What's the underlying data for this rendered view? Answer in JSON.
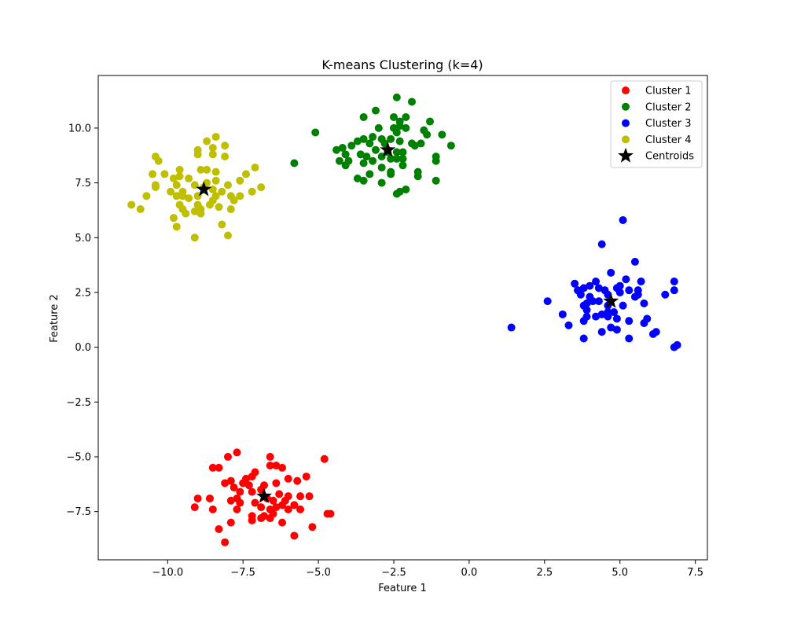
{
  "chart_data": {
    "type": "scatter",
    "title": "K-means Clustering (k=4)",
    "xlabel": "Feature 1",
    "ylabel": "Feature 2",
    "xlim": [
      -12.3,
      7.9
    ],
    "ylim": [
      -9.7,
      12.4
    ],
    "xticks": [
      -10.0,
      -7.5,
      -5.0,
      -2.5,
      0.0,
      2.5,
      5.0,
      7.5
    ],
    "xtick_labels": [
      "−10.0",
      "−7.5",
      "−5.0",
      "−2.5",
      "0.0",
      "2.5",
      "5.0",
      "7.5"
    ],
    "yticks": [
      -7.5,
      -5.0,
      -2.5,
      0.0,
      2.5,
      5.0,
      7.5,
      10.0
    ],
    "ytick_labels": [
      "−7.5",
      "−5.0",
      "−2.5",
      "0.0",
      "2.5",
      "5.0",
      "7.5",
      "10.0"
    ],
    "legend_position": "top-right",
    "series": [
      {
        "name": "Cluster 1",
        "color": "#ff0000",
        "points": [
          [
            -7.7,
            -4.8
          ],
          [
            -6.6,
            -5.0
          ],
          [
            -8.0,
            -5.0
          ],
          [
            -4.8,
            -5.1
          ],
          [
            -8.5,
            -5.5
          ],
          [
            -6.4,
            -5.4
          ],
          [
            -6.2,
            -5.5
          ],
          [
            -6.6,
            -5.4
          ],
          [
            -8.3,
            -5.5
          ],
          [
            -5.4,
            -5.9
          ],
          [
            -7.1,
            -5.7
          ],
          [
            -7.2,
            -5.9
          ],
          [
            -6.0,
            -6.0
          ],
          [
            -5.7,
            -6.1
          ],
          [
            -7.4,
            -6.0
          ],
          [
            -7.9,
            -6.1
          ],
          [
            -8.1,
            -6.2
          ],
          [
            -7.5,
            -6.2
          ],
          [
            -7.3,
            -6.3
          ],
          [
            -6.8,
            -6.3
          ],
          [
            -6.4,
            -6.2
          ],
          [
            -7.8,
            -6.4
          ],
          [
            -6.9,
            -6.5
          ],
          [
            -7.2,
            -6.6
          ],
          [
            -7.6,
            -6.6
          ],
          [
            -6.3,
            -6.7
          ],
          [
            -6.0,
            -6.8
          ],
          [
            -5.6,
            -6.8
          ],
          [
            -5.3,
            -6.8
          ],
          [
            -7.7,
            -6.9
          ],
          [
            -6.7,
            -6.9
          ],
          [
            -8.6,
            -6.9
          ],
          [
            -9.0,
            -6.9
          ],
          [
            -7.9,
            -7.0
          ],
          [
            -6.5,
            -7.0
          ],
          [
            -6.1,
            -7.0
          ],
          [
            -7.6,
            -7.1
          ],
          [
            -7.1,
            -7.1
          ],
          [
            -6.2,
            -7.2
          ],
          [
            -5.8,
            -7.2
          ],
          [
            -6.9,
            -7.3
          ],
          [
            -6.6,
            -7.4
          ],
          [
            -6.4,
            -7.3
          ],
          [
            -6.0,
            -7.4
          ],
          [
            -5.6,
            -7.4
          ],
          [
            -9.1,
            -7.3
          ],
          [
            -8.5,
            -7.4
          ],
          [
            -7.7,
            -7.4
          ],
          [
            -6.5,
            -7.6
          ],
          [
            -6.8,
            -7.7
          ],
          [
            -7.2,
            -7.7
          ],
          [
            -4.7,
            -7.6
          ],
          [
            -4.6,
            -7.6
          ],
          [
            -7.2,
            -7.9
          ],
          [
            -6.6,
            -7.8
          ],
          [
            -6.9,
            -7.8
          ],
          [
            -6.2,
            -8.0
          ],
          [
            -7.9,
            -8.0
          ],
          [
            -5.2,
            -8.2
          ],
          [
            -8.3,
            -8.3
          ],
          [
            -5.8,
            -8.6
          ],
          [
            -8.1,
            -8.9
          ]
        ]
      },
      {
        "name": "Cluster 2",
        "color": "#008000",
        "points": [
          [
            -2.4,
            11.4
          ],
          [
            -1.9,
            11.2
          ],
          [
            -3.1,
            10.8
          ],
          [
            -2.1,
            10.5
          ],
          [
            -2.5,
            10.5
          ],
          [
            -3.5,
            10.5
          ],
          [
            -2.3,
            10.3
          ],
          [
            -1.3,
            10.3
          ],
          [
            -2.3,
            10.1
          ],
          [
            -3.0,
            10.0
          ],
          [
            -2.5,
            10.0
          ],
          [
            -2.1,
            10.0
          ],
          [
            -1.5,
            9.9
          ],
          [
            -2.4,
            9.8
          ],
          [
            -1.4,
            9.7
          ],
          [
            -0.9,
            9.7
          ],
          [
            -5.1,
            9.8
          ],
          [
            -2.6,
            9.5
          ],
          [
            -3.2,
            9.6
          ],
          [
            -2.9,
            9.5
          ],
          [
            -3.7,
            9.4
          ],
          [
            -3.5,
            9.5
          ],
          [
            -3.3,
            9.3
          ],
          [
            -2.8,
            9.3
          ],
          [
            -2.3,
            9.4
          ],
          [
            -1.9,
            9.3
          ],
          [
            -1.6,
            9.3
          ],
          [
            -1.8,
            9.2
          ],
          [
            -0.6,
            9.2
          ],
          [
            -3.9,
            9.2
          ],
          [
            -4.2,
            9.1
          ],
          [
            -4.4,
            9.0
          ],
          [
            -3.1,
            9.0
          ],
          [
            -2.7,
            8.9
          ],
          [
            -2.4,
            8.9
          ],
          [
            -2.2,
            8.9
          ],
          [
            -4.1,
            8.8
          ],
          [
            -3.6,
            8.8
          ],
          [
            -3.4,
            8.7
          ],
          [
            -2.9,
            8.7
          ],
          [
            -2.6,
            8.6
          ],
          [
            -2.4,
            8.6
          ],
          [
            -2.2,
            8.6
          ],
          [
            -3.2,
            8.5
          ],
          [
            -4.0,
            8.5
          ],
          [
            -4.3,
            8.5
          ],
          [
            -3.5,
            8.4
          ],
          [
            -1.1,
            8.7
          ],
          [
            -1.1,
            8.5
          ],
          [
            -5.8,
            8.4
          ],
          [
            -4.1,
            8.3
          ],
          [
            -2.9,
            8.2
          ],
          [
            -2.2,
            8.3
          ],
          [
            -2.6,
            8.0
          ],
          [
            -1.7,
            8.0
          ],
          [
            -3.3,
            7.9
          ],
          [
            -2.6,
            7.9
          ],
          [
            -1.7,
            7.8
          ],
          [
            -3.7,
            7.7
          ],
          [
            -3.5,
            7.6
          ],
          [
            -2.9,
            7.5
          ],
          [
            -1.1,
            7.6
          ],
          [
            -2.1,
            7.2
          ],
          [
            -2.3,
            7.1
          ],
          [
            -2.4,
            7.0
          ]
        ]
      },
      {
        "name": "Cluster 3",
        "color": "#0000ff",
        "points": [
          [
            5.1,
            5.8
          ],
          [
            4.4,
            4.7
          ],
          [
            5.5,
            3.9
          ],
          [
            4.7,
            3.4
          ],
          [
            3.5,
            2.9
          ],
          [
            4.2,
            3.0
          ],
          [
            5.7,
            3.0
          ],
          [
            6.8,
            3.0
          ],
          [
            5.2,
            3.1
          ],
          [
            4.0,
            2.8
          ],
          [
            3.8,
            2.7
          ],
          [
            3.6,
            2.6
          ],
          [
            4.3,
            2.7
          ],
          [
            4.5,
            2.6
          ],
          [
            4.9,
            2.7
          ],
          [
            5.0,
            2.8
          ],
          [
            5.3,
            2.6
          ],
          [
            5.6,
            2.6
          ],
          [
            6.8,
            2.6
          ],
          [
            6.5,
            2.4
          ],
          [
            3.7,
            2.4
          ],
          [
            4.0,
            2.3
          ],
          [
            4.6,
            2.4
          ],
          [
            5.0,
            2.5
          ],
          [
            5.6,
            2.4
          ],
          [
            4.1,
            2.1
          ],
          [
            3.9,
            2.0
          ],
          [
            3.8,
            1.9
          ],
          [
            4.3,
            2.1
          ],
          [
            4.6,
            1.9
          ],
          [
            5.1,
            1.9
          ],
          [
            5.8,
            2.0
          ],
          [
            2.6,
            2.1
          ],
          [
            3.9,
            1.7
          ],
          [
            4.4,
            1.5
          ],
          [
            4.6,
            1.6
          ],
          [
            4.8,
            1.6
          ],
          [
            3.1,
            1.5
          ],
          [
            3.9,
            1.4
          ],
          [
            4.2,
            1.4
          ],
          [
            4.6,
            1.4
          ],
          [
            4.9,
            1.3
          ],
          [
            5.3,
            1.2
          ],
          [
            5.9,
            1.3
          ],
          [
            5.8,
            1.1
          ],
          [
            3.8,
            1.2
          ],
          [
            3.3,
            1.0
          ],
          [
            4.7,
            0.9
          ],
          [
            4.9,
            0.8
          ],
          [
            4.4,
            0.7
          ],
          [
            1.4,
            0.9
          ],
          [
            6.2,
            0.7
          ],
          [
            6.1,
            0.6
          ],
          [
            3.8,
            0.4
          ],
          [
            5.3,
            0.4
          ],
          [
            6.8,
            0.0
          ],
          [
            6.9,
            0.1
          ],
          [
            5.5,
            2.3
          ]
        ]
      },
      {
        "name": "Cluster 4",
        "color": "#bfbf00",
        "points": [
          [
            -8.4,
            9.6
          ],
          [
            -8.1,
            9.2
          ],
          [
            -8.7,
            9.4
          ],
          [
            -8.5,
            9.1
          ],
          [
            -9.0,
            9.0
          ],
          [
            -9.0,
            8.8
          ],
          [
            -8.1,
            8.7
          ],
          [
            -8.5,
            8.8
          ],
          [
            -10.4,
            8.7
          ],
          [
            -10.3,
            8.5
          ],
          [
            -7.1,
            8.2
          ],
          [
            -8.9,
            8.1
          ],
          [
            -8.4,
            8.0
          ],
          [
            -9.6,
            8.1
          ],
          [
            -8.7,
            8.1
          ],
          [
            -10.5,
            7.9
          ],
          [
            -10.1,
            7.9
          ],
          [
            -9.6,
            7.8
          ],
          [
            -7.4,
            7.9
          ],
          [
            -9.8,
            7.7
          ],
          [
            -9.3,
            7.7
          ],
          [
            -8.4,
            7.6
          ],
          [
            -8.7,
            7.5
          ],
          [
            -7.6,
            7.6
          ],
          [
            -10.4,
            7.4
          ],
          [
            -10.4,
            7.3
          ],
          [
            -9.7,
            7.4
          ],
          [
            -9.1,
            7.4
          ],
          [
            -8.8,
            7.3
          ],
          [
            -8.0,
            7.4
          ],
          [
            -6.9,
            7.3
          ],
          [
            -9.9,
            7.1
          ],
          [
            -9.5,
            7.1
          ],
          [
            -8.5,
            7.2
          ],
          [
            -8.2,
            7.1
          ],
          [
            -7.2,
            7.1
          ],
          [
            -10.7,
            6.9
          ],
          [
            -9.7,
            6.9
          ],
          [
            -9.5,
            6.9
          ],
          [
            -9.0,
            6.9
          ],
          [
            -8.4,
            6.9
          ],
          [
            -7.9,
            6.9
          ],
          [
            -7.6,
            6.9
          ],
          [
            -9.3,
            6.8
          ],
          [
            -8.5,
            6.7
          ],
          [
            -7.8,
            6.7
          ],
          [
            -9.6,
            6.5
          ],
          [
            -9.0,
            6.5
          ],
          [
            -8.6,
            6.5
          ],
          [
            -8.9,
            6.3
          ],
          [
            -8.3,
            6.4
          ],
          [
            -7.9,
            6.3
          ],
          [
            -9.5,
            6.3
          ],
          [
            -9.1,
            6.2
          ],
          [
            -11.2,
            6.5
          ],
          [
            -10.9,
            6.3
          ],
          [
            -9.8,
            5.9
          ],
          [
            -9.7,
            5.5
          ],
          [
            -8.2,
            5.6
          ],
          [
            -9.1,
            5.0
          ],
          [
            -8.0,
            5.1
          ],
          [
            -9.4,
            6.1
          ],
          [
            -8.9,
            6.1
          ]
        ]
      }
    ],
    "centroids": {
      "name": "Centroids",
      "color": "#000000",
      "points": [
        [
          -6.8,
          -6.8
        ],
        [
          -2.7,
          9.0
        ],
        [
          4.7,
          2.1
        ],
        [
          -8.8,
          7.2
        ]
      ]
    }
  }
}
